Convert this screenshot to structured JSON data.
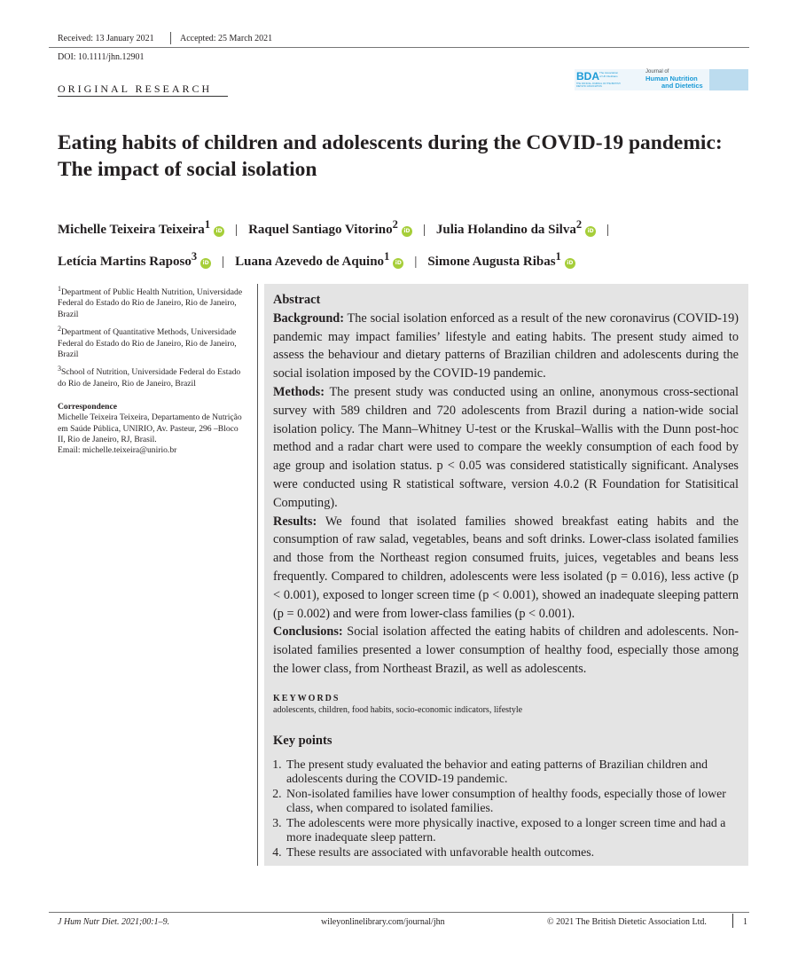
{
  "header": {
    "received": "Received: 13 January 2021",
    "accepted": "Accepted: 25 March 2021",
    "doi": "DOI: 10.1111/jhn.12901",
    "section": "ORIGINAL RESEARCH",
    "logo": {
      "bda": "BDA",
      "bda_sub": "The Association of UK Dietitians",
      "bda_tag": "THE OFFICIAL JOURNAL OF THE BRITISH DIETETIC ASSOCIATION",
      "journal_l1": "Journal of",
      "journal_l2": "Human Nutrition",
      "journal_l3": "and Dietetics",
      "color": "#1b9ad6"
    }
  },
  "title": "Eating habits of children and adolescents during the COVID-19 pandemic: The impact of social isolation",
  "authors": [
    {
      "name": "Michelle Teixeira Teixeira",
      "sup": "1"
    },
    {
      "name": "Raquel Santiago Vitorino",
      "sup": "2"
    },
    {
      "name": "Julia Holandino da Silva",
      "sup": "2"
    },
    {
      "name": "Letícia Martins Raposo",
      "sup": "3"
    },
    {
      "name": "Luana Azevedo de Aquino",
      "sup": "1"
    },
    {
      "name": "Simone Augusta Ribas",
      "sup": "1"
    }
  ],
  "orcid_label": "iD",
  "affiliations": [
    {
      "sup": "1",
      "text": "Department of Public Health Nutrition, Universidade Federal do Estado do Rio de Janeiro, Rio de Janeiro, Brazil"
    },
    {
      "sup": "2",
      "text": "Department of Quantitative Methods, Universidade Federal do Estado do Rio de Janeiro, Rio de Janeiro, Brazil"
    },
    {
      "sup": "3",
      "text": "School of Nutrition, Universidade Federal do Estado do Rio de Janeiro, Rio de Janeiro, Brazil"
    }
  ],
  "correspondence": {
    "heading": "Correspondence",
    "text": "Michelle Teixeira Teixeira, Departamento de Nutrição em Saúde Pública, UNIRIO, Av. Pasteur, 296 –Bloco II, Rio de Janeiro, RJ, Brasil.",
    "email": "Email: michelle.teixeira@unirio.br"
  },
  "abstract": {
    "heading": "Abstract",
    "background_label": "Background:",
    "background": " The social isolation enforced as a result of the new coronavirus (COVID-19) pandemic may impact families’ lifestyle and eating habits. The present study aimed to assess the behaviour and dietary patterns of Brazilian children and adolescents during the social isolation imposed by the COVID-19 pandemic.",
    "methods_label": "Methods:",
    "methods": " The present study was conducted using an online, anonymous cross-sectional survey with 589 children and 720 adolescents from Brazil during a nation-wide social isolation policy. The Mann–Whitney U-test or the Kruskal–Wallis with the Dunn post-hoc method and a radar chart were used to compare the weekly consumption of each food by age group and isolation status. p < 0.05 was considered statistically significant. Analyses were conducted using R statistical software, version 4.0.2 (R Foundation for Statisitical Computing).",
    "results_label": "Results:",
    "results": " We found that isolated families showed breakfast eating habits and the consumption of raw salad, vegetables, beans and soft drinks. Lower-class isolated families and those from the Northeast region consumed fruits, juices, vegetables and beans less frequently. Compared to children, adolescents were less isolated (p = 0.016), less active (p < 0.001), exposed to longer screen time (p < 0.001), showed an inadequate sleeping pattern (p = 0.002) and were from lower-class families (p < 0.001).",
    "conclusions_label": "Conclusions:",
    "conclusions": " Social isolation affected the eating habits of children and adolescents. Non-isolated families presented a lower consumption of healthy food, especially those among the lower class, from Northeast Brazil, as well as adolescents."
  },
  "keywords": {
    "heading": "KEYWORDS",
    "text": "adolescents, children, food habits, socio-economic indicators, lifestyle"
  },
  "key_points": {
    "heading": "Key points",
    "items": [
      "The present study evaluated the behavior and eating patterns of Brazilian children and adolescents during the COVID-19 pandemic.",
      "Non-isolated families have lower consumption of healthy foods, especially those of lower class, when compared to isolated families.",
      "The adolescents were more physically inactive, exposed to a longer screen time and had a more inadequate sleep pattern.",
      "These results are associated with unfavorable health outcomes."
    ]
  },
  "footer": {
    "citation": "J Hum Nutr Diet. 2021;00:1–9.",
    "url": "wileyonlinelibrary.com/journal/jhn",
    "copyright": "© 2021 The British Dietetic Association Ltd.",
    "page": "1"
  }
}
